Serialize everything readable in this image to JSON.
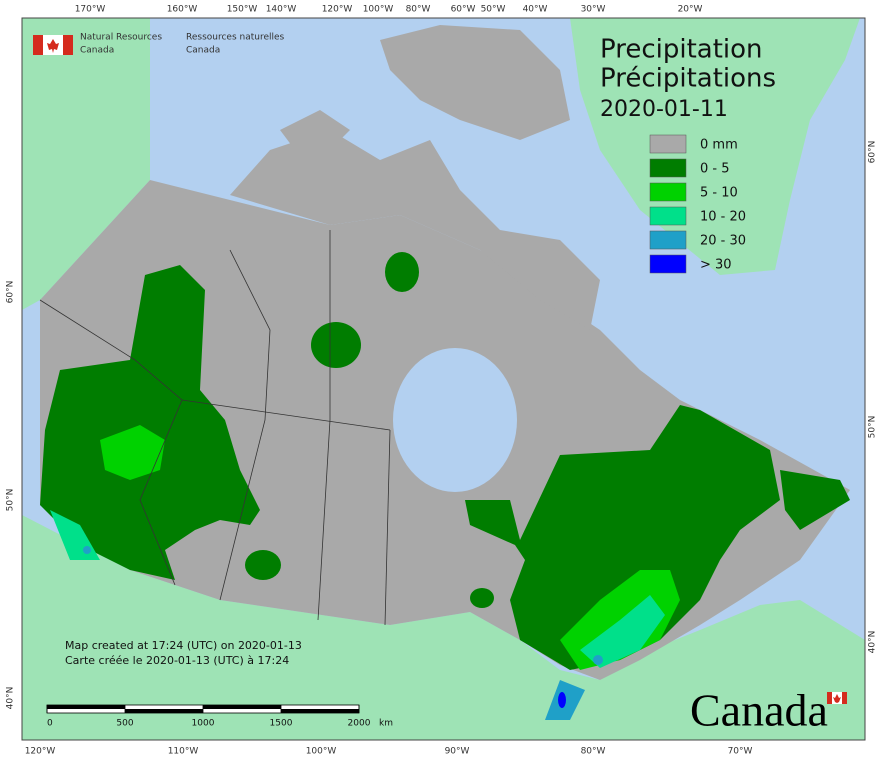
{
  "header": {
    "org_en": [
      "Natural Resources",
      "Canada"
    ],
    "org_fr": [
      "Ressources naturelles",
      "Canada"
    ]
  },
  "title": [
    "Precipitation",
    "Précipitations"
  ],
  "date": "2020-01-11",
  "legend": [
    {
      "label": "0 mm",
      "color": "#a9a9a9"
    },
    {
      "label": "0 - 5",
      "color": "#007d00"
    },
    {
      "label": "5 - 10",
      "color": "#00d200"
    },
    {
      "label": "10 - 20",
      "color": "#00e08a"
    },
    {
      "label": "20 - 30",
      "color": "#1fa0c8"
    },
    {
      "label": "> 30",
      "color": "#0000ff"
    }
  ],
  "top_longitudes": [
    "170°W",
    "160°W",
    "150°W",
    "140°W",
    "120°W",
    "100°W",
    "80°W",
    "60°W",
    "50°W",
    "40°W",
    "30°W",
    "20°W"
  ],
  "bottom_longitudes": [
    "120°W",
    "110°W",
    "100°W",
    "90°W",
    "80°W",
    "70°W"
  ],
  "left_latitudes": [
    "60°N",
    "50°N",
    "40°N"
  ],
  "right_latitudes": [
    "60°N",
    "50°N",
    "40°N"
  ],
  "scale_bar": {
    "ticks": [
      0,
      500,
      1000,
      1500,
      2000
    ],
    "unit": "km"
  },
  "notes": [
    "Map created at 17:24 (UTC) on 2020-01-13",
    "Carte créée le 2020-01-13 (UTC) à 17:24"
  ],
  "wordmark": "Canada"
}
